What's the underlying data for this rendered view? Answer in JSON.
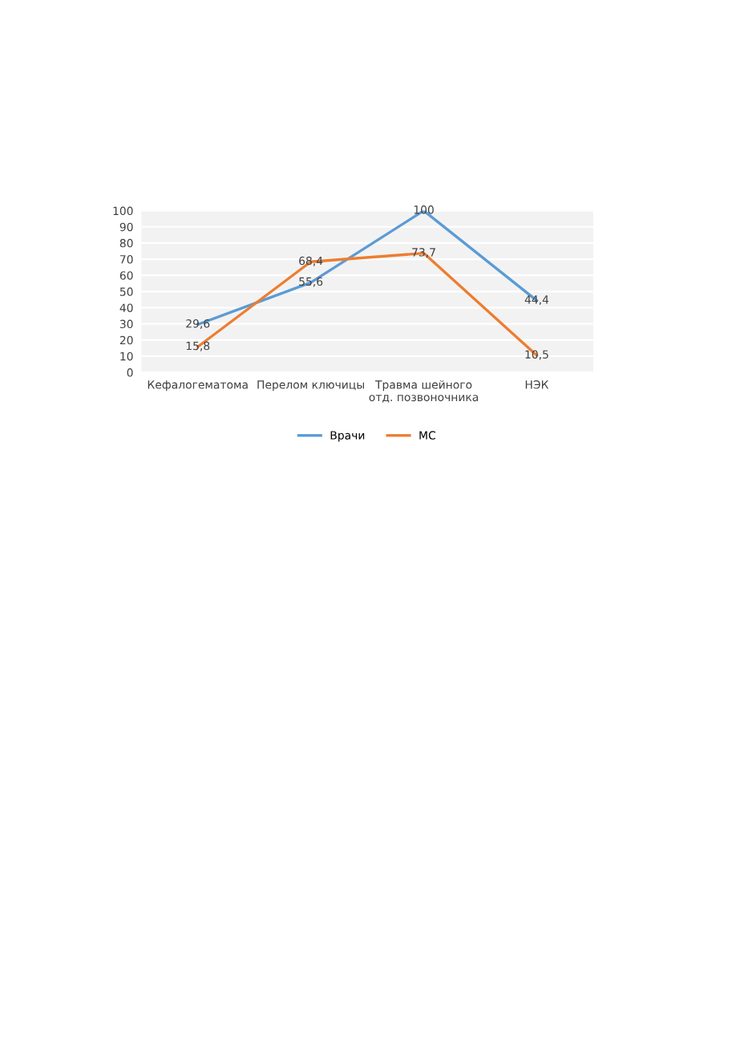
{
  "chart_data": {
    "type": "line",
    "categories": [
      "Кефалогематома",
      "Перелом ключицы",
      "Травма шейного\nотд. позвоночника",
      "НЭК"
    ],
    "series": [
      {
        "name": "Врачи",
        "color": "#5b9bd5",
        "values": [
          29.6,
          55.6,
          100,
          44.4
        ],
        "value_labels": [
          "29,6",
          "55,6",
          "100",
          "44,4"
        ]
      },
      {
        "name": "МС",
        "color": "#ed7d31",
        "values": [
          15.8,
          68.4,
          73.7,
          10.5
        ],
        "value_labels": [
          "15,8",
          "68,4",
          "73,7",
          "10,5"
        ]
      }
    ],
    "ylim": [
      0,
      100
    ],
    "yticks": [
      0,
      10,
      20,
      30,
      40,
      50,
      60,
      70,
      80,
      90,
      100
    ],
    "grid": "y",
    "legend": "bottom",
    "marker": "none",
    "line_style": "solid"
  }
}
